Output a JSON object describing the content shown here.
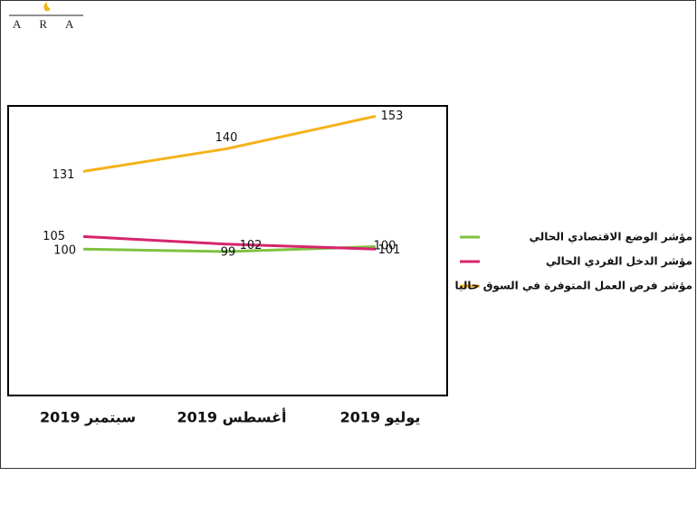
{
  "logo": "ARA",
  "chart_data": {
    "type": "line",
    "categories": [
      "سبتمبر 2019",
      "أغسطس 2019",
      "يوليو 2019"
    ],
    "series": [
      {
        "name": "مؤشر الوضع الاقتصادي الحالي",
        "color": "#7dc242",
        "values": [
          100,
          99,
          101
        ]
      },
      {
        "name": "مؤشر الدخل الفردي الحالي",
        "color": "#d6246e",
        "values": [
          105,
          102,
          100
        ]
      },
      {
        "name": "مؤشر فرص العمل المتوفرة في السوق حاليا",
        "color": "#f5b21b",
        "values": [
          131,
          140,
          153
        ]
      }
    ],
    "legend": "right"
  }
}
